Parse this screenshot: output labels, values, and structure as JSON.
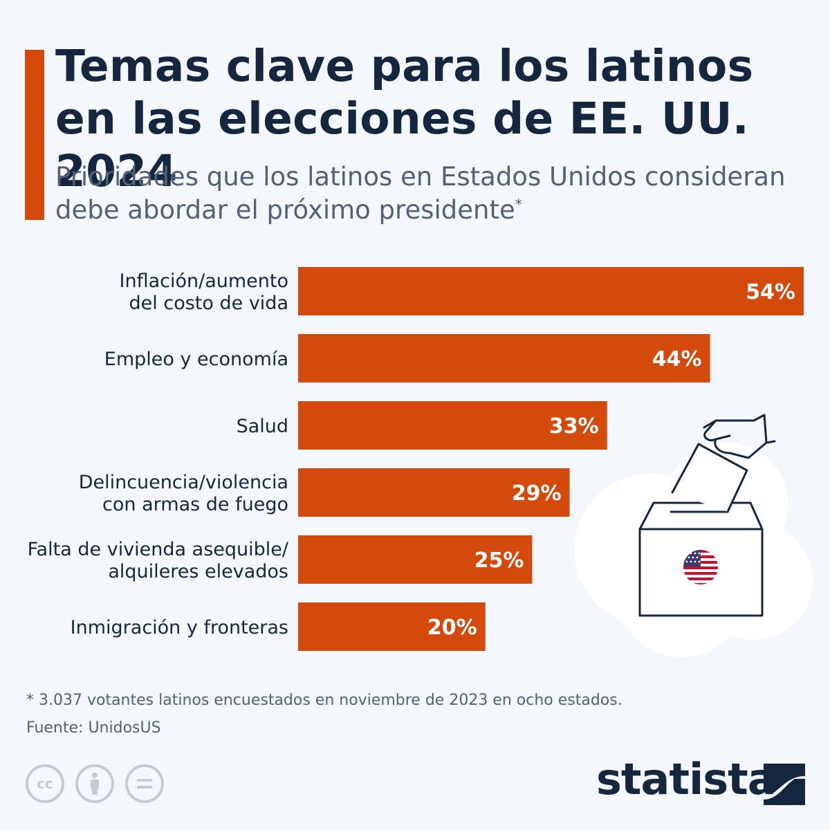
{
  "header": {
    "title": "Temas clave para los latinos en las elecciones de EE. UU. 2024",
    "subtitle": "Prioridades que los latinos en Estados Unidos consideran debe abordar el próximo presidente",
    "subtitle_marker": "*"
  },
  "chart_data": {
    "type": "bar",
    "orientation": "horizontal",
    "title": "Temas clave para los latinos en las elecciones de EE. UU. 2024",
    "categories": [
      [
        "Inflación/aumento",
        "del costo de vida"
      ],
      [
        "Empleo y economía"
      ],
      [
        "Salud"
      ],
      [
        "Delincuencia/violencia",
        "con armas de fuego"
      ],
      [
        "Falta de vivienda asequible/",
        "alquileres elevados"
      ],
      [
        "Inmigración y fronteras"
      ]
    ],
    "values": [
      54,
      44,
      33,
      29,
      25,
      20
    ],
    "value_labels": [
      "54%",
      "44%",
      "33%",
      "29%",
      "25%",
      "20%"
    ],
    "unit": "%",
    "xlim": [
      0,
      54
    ],
    "bar_color": "#d44a0c"
  },
  "footer": {
    "footnote": "* 3.037 votantes latinos encuestados en noviembre de 2023 en ocho estados.",
    "source": "Fuente: UnidosUS",
    "brand": "statista",
    "license_icons": [
      "cc-icon",
      "attribution-icon",
      "no-derivatives-icon"
    ]
  },
  "colors": {
    "accent": "#d44a0c",
    "title": "#14273e",
    "subtitle": "#526175",
    "background": "#f4f7fb"
  }
}
